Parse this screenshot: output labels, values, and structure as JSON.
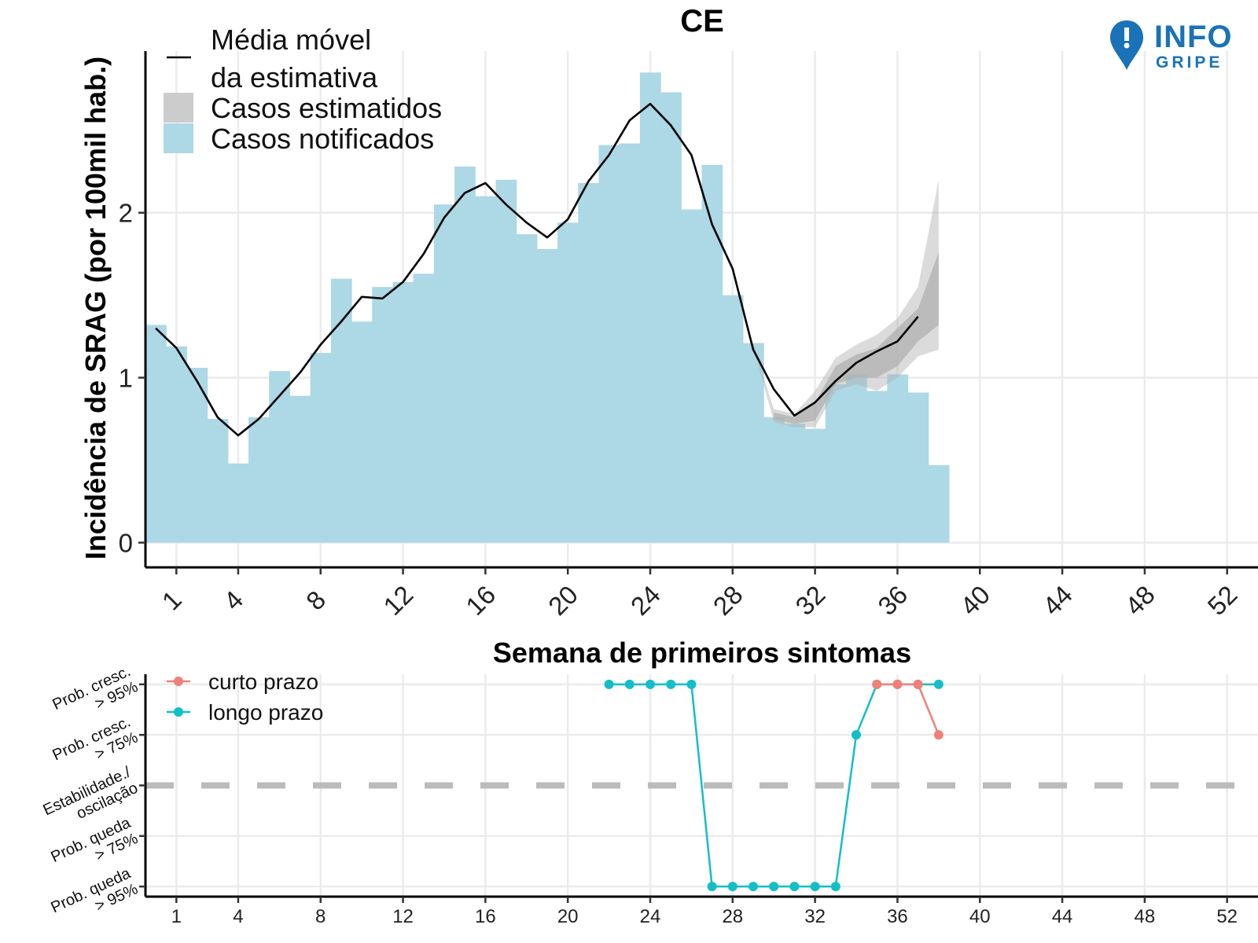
{
  "logo": {
    "line1": "INFO",
    "line2": "GRIPE",
    "color": "#1a72b8"
  },
  "chart_data": [
    {
      "type": "bar",
      "title": "CE",
      "xlabel": "Semana de primeiros sintomas",
      "ylabel": "Incidência de SRAG (por 100mil hab.)",
      "xticks": [
        1,
        4,
        8,
        12,
        16,
        20,
        24,
        28,
        32,
        36,
        40,
        44,
        48,
        52
      ],
      "yticks": [
        0,
        1,
        2
      ],
      "xlim": [
        -0.5,
        53.5
      ],
      "ylim": [
        -0.15,
        2.98
      ],
      "grid": true,
      "legend_position": "top-left",
      "legend": [
        "Média móvel",
        "da estimativa",
        "Casos estimatidos",
        "Casos notificados"
      ],
      "colors": {
        "notified": "#add8e6",
        "estimate_band": "#b0b0b0",
        "moving_average": "#000000"
      },
      "notified_cases": {
        "weeks": [
          0,
          1,
          2,
          3,
          4,
          5,
          6,
          7,
          8,
          9,
          10,
          11,
          12,
          13,
          14,
          15,
          16,
          17,
          18,
          19,
          20,
          21,
          22,
          23,
          24,
          25,
          26,
          27,
          28,
          29,
          30,
          31,
          32,
          33,
          34,
          35,
          36,
          37,
          38
        ],
        "values": [
          1.32,
          1.19,
          1.06,
          0.75,
          0.48,
          0.76,
          1.04,
          0.89,
          1.15,
          1.6,
          1.34,
          1.55,
          1.58,
          1.63,
          2.05,
          2.28,
          2.1,
          2.2,
          1.87,
          1.78,
          1.94,
          2.18,
          2.41,
          2.42,
          2.85,
          2.73,
          2.02,
          2.29,
          1.5,
          1.21,
          0.76,
          0.72,
          0.69,
          0.96,
          1.02,
          0.92,
          1.02,
          0.91,
          0.47
        ]
      },
      "moving_average": {
        "weeks": [
          0,
          1,
          2,
          3,
          4,
          5,
          6,
          7,
          8,
          9,
          10,
          11,
          12,
          13,
          14,
          15,
          16,
          17,
          18,
          19,
          20,
          21,
          22,
          23,
          24,
          25,
          26,
          27,
          28,
          29,
          30,
          31,
          32,
          33,
          34,
          35,
          36,
          37
        ],
        "values": [
          1.3,
          1.18,
          0.98,
          0.76,
          0.65,
          0.75,
          0.89,
          1.03,
          1.2,
          1.34,
          1.49,
          1.48,
          1.58,
          1.75,
          1.97,
          2.12,
          2.18,
          2.05,
          1.94,
          1.85,
          1.96,
          2.19,
          2.35,
          2.56,
          2.66,
          2.53,
          2.35,
          1.93,
          1.66,
          1.17,
          0.93,
          0.77,
          0.85,
          0.98,
          1.09,
          1.16,
          1.22,
          1.37
        ]
      },
      "estimate_band_outer": {
        "weeks": [
          29,
          30,
          31,
          32,
          33,
          34,
          35,
          36,
          37,
          38
        ],
        "lower": [
          1.19,
          0.73,
          0.7,
          0.7,
          0.92,
          0.96,
          0.92,
          1.0,
          1.13,
          1.17
        ],
        "upper": [
          1.21,
          0.81,
          0.78,
          0.92,
          1.12,
          1.2,
          1.26,
          1.36,
          1.55,
          2.2
        ]
      },
      "estimate_band_inner": {
        "weeks": [
          30,
          31,
          32,
          33,
          34,
          35,
          36,
          37,
          38
        ],
        "lower": [
          0.75,
          0.72,
          0.74,
          0.96,
          1.0,
          1.0,
          1.07,
          1.22,
          1.32
        ],
        "upper": [
          0.79,
          0.76,
          0.85,
          1.07,
          1.14,
          1.18,
          1.3,
          1.42,
          1.76
        ]
      }
    },
    {
      "type": "line",
      "xlabel": "",
      "ylabel": "",
      "xticks": [
        1,
        4,
        8,
        12,
        16,
        20,
        24,
        28,
        32,
        36,
        40,
        44,
        48,
        52
      ],
      "yticks": [
        {
          "value": 2,
          "label": [
            "Prob. cresc.",
            "> 95%"
          ]
        },
        {
          "value": 1,
          "label": [
            "Prob. cresc.",
            "> 75%"
          ]
        },
        {
          "value": 0,
          "label": [
            "Estabilidade./",
            "oscilação"
          ]
        },
        {
          "value": -1,
          "label": [
            "Prob. queda",
            "> 75%"
          ]
        },
        {
          "value": -2,
          "label": [
            "Prob. queda",
            "> 95%"
          ]
        }
      ],
      "xlim": [
        -0.5,
        53.5
      ],
      "ylim": [
        -2.2,
        2.2
      ],
      "reference_line": {
        "y": 0,
        "style": "dashed",
        "color": "#bbbbbb"
      },
      "legend_position": "top-left",
      "series": [
        {
          "name": "curto prazo",
          "color": "#f08078",
          "x": [
            35,
            36,
            37,
            38
          ],
          "y": [
            2,
            2,
            2,
            1
          ]
        },
        {
          "name": "longo prazo",
          "color": "#14bec6",
          "x": [
            22,
            23,
            24,
            25,
            26,
            27,
            28,
            29,
            30,
            31,
            32,
            33,
            34,
            35,
            36,
            37,
            38
          ],
          "y": [
            2,
            2,
            2,
            2,
            2,
            -2,
            -2,
            -2,
            -2,
            -2,
            -2,
            -2,
            1,
            2,
            2,
            2,
            2
          ]
        }
      ]
    }
  ]
}
